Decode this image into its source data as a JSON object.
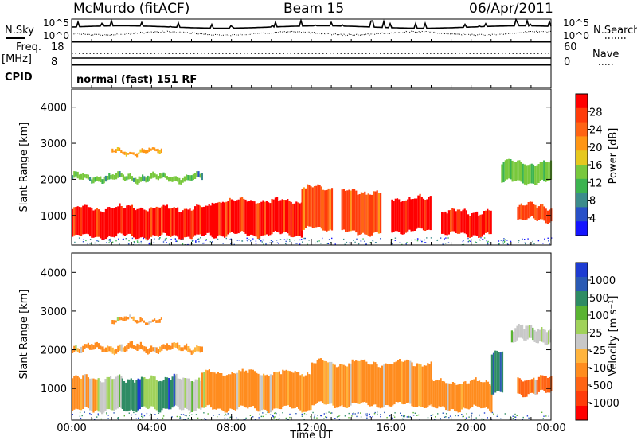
{
  "header": {
    "station": "McMurdo (fitACF)",
    "beam": "Beam 15",
    "date": "06/Apr/2011"
  },
  "noise_panel": {
    "left_label": "N.Sky",
    "right_label": "N.Search",
    "left_ticks": [
      "10^5",
      "10^0"
    ],
    "right_ticks": [
      "10^5",
      "10^0"
    ]
  },
  "freq_panel": {
    "left_label_1": "Freq.",
    "left_label_2": "[MHz]",
    "left_ticks": [
      "18",
      "8"
    ],
    "right_label": "Nave",
    "right_ticks": [
      "60",
      "0"
    ],
    "cpid_label": "CPID",
    "program": "normal (fast) 151 RF"
  },
  "colors": {
    "power_scale": [
      "#1414ff",
      "#2850c8",
      "#3c8c8c",
      "#3cb450",
      "#78c83c",
      "#e6c81e",
      "#ff9614",
      "#ff6414",
      "#ff3c0a",
      "#ff0000"
    ],
    "velocity_scale": [
      "#1e3cd2",
      "#2a5ab4",
      "#2e8c64",
      "#5ab432",
      "#a0d25a",
      "#c8c8c8",
      "#ffb43c",
      "#ff8c1e",
      "#ff6414",
      "#ff3c0a",
      "#ff0000"
    ]
  },
  "chart_data": [
    {
      "type": "heatmap",
      "panel": "power",
      "ylabel": "Slant Range [km]",
      "ylim": [
        180,
        4500
      ],
      "yticks": [
        "1000",
        "2000",
        "3000",
        "4000"
      ],
      "colorbar_label": "Power [dB]",
      "colorbar_ticks": [
        "4",
        "8",
        "12",
        "16",
        "20",
        "24",
        "28"
      ],
      "colorbar_range": [
        0,
        32
      ],
      "x_range_hours": [
        0,
        24
      ],
      "bands": [
        {
          "h0": 0.0,
          "h1": 7.0,
          "lo": 400,
          "hi": 1250,
          "level": 9
        },
        {
          "h0": 7.0,
          "h1": 11.5,
          "lo": 450,
          "hi": 1450,
          "level": 9
        },
        {
          "h0": 11.5,
          "h1": 13.0,
          "lo": 600,
          "hi": 1800,
          "level": 8
        },
        {
          "h0": 13.5,
          "h1": 15.5,
          "lo": 500,
          "hi": 1700,
          "level": 8
        },
        {
          "h0": 16.0,
          "h1": 18.0,
          "lo": 550,
          "hi": 1500,
          "level": 9
        },
        {
          "h0": 18.5,
          "h1": 21.0,
          "lo": 450,
          "hi": 1150,
          "level": 9
        },
        {
          "h0": 22.3,
          "h1": 24.0,
          "lo": 850,
          "hi": 1300,
          "level": 8
        },
        {
          "h0": 0.0,
          "h1": 6.5,
          "lo": 1950,
          "hi": 2150,
          "level": 4
        },
        {
          "h0": 2.0,
          "h1": 4.5,
          "lo": 2700,
          "hi": 2850,
          "level": 6
        },
        {
          "h0": 21.5,
          "h1": 24.0,
          "lo": 1900,
          "hi": 2500,
          "level": 4
        }
      ]
    },
    {
      "type": "heatmap",
      "panel": "velocity",
      "ylabel": "Slant Range [km]",
      "ylim": [
        180,
        4500
      ],
      "yticks": [
        "1000",
        "2000",
        "3000",
        "4000"
      ],
      "colorbar_label": "Velocity [m s⁻¹]",
      "colorbar_ticks": [
        "1000",
        "500",
        "100",
        "25",
        "-25",
        "-100",
        "-500",
        "-1000"
      ],
      "colorbar_range": [
        -1250,
        1250
      ],
      "x_range_hours": [
        0,
        24
      ],
      "xlabel": "Time UT",
      "xticks": [
        "00:00",
        "04:00",
        "08:00",
        "12:00",
        "16:00",
        "20:00",
        "00:00"
      ],
      "bands": [
        {
          "h0": 0.0,
          "h1": 1.3,
          "lo": 400,
          "hi": 1300,
          "level": 7
        },
        {
          "h0": 1.3,
          "h1": 2.5,
          "lo": 400,
          "hi": 1300,
          "level": 5
        },
        {
          "h0": 2.5,
          "h1": 3.6,
          "lo": 450,
          "hi": 1300,
          "level": 2
        },
        {
          "h0": 3.6,
          "h1": 4.3,
          "lo": 450,
          "hi": 1300,
          "level": 4
        },
        {
          "h0": 4.3,
          "h1": 5.2,
          "lo": 450,
          "hi": 1300,
          "level": 2
        },
        {
          "h0": 5.2,
          "h1": 6.5,
          "lo": 450,
          "hi": 1300,
          "level": 5
        },
        {
          "h0": 6.5,
          "h1": 12.0,
          "lo": 450,
          "hi": 1450,
          "level": 7
        },
        {
          "h0": 12.0,
          "h1": 18.0,
          "lo": 550,
          "hi": 1700,
          "level": 7
        },
        {
          "h0": 18.0,
          "h1": 21.0,
          "lo": 450,
          "hi": 1200,
          "level": 7
        },
        {
          "h0": 21.0,
          "h1": 21.6,
          "lo": 900,
          "hi": 2000,
          "level": 2
        },
        {
          "h0": 22.3,
          "h1": 24.0,
          "lo": 850,
          "hi": 1300,
          "level": 8
        },
        {
          "h0": 0.0,
          "h1": 6.5,
          "lo": 1950,
          "hi": 2150,
          "level": 7
        },
        {
          "h0": 2.0,
          "h1": 4.5,
          "lo": 2700,
          "hi": 2850,
          "level": 7
        },
        {
          "h0": 22.0,
          "h1": 24.0,
          "lo": 2200,
          "hi": 2600,
          "level": 5
        }
      ]
    }
  ]
}
